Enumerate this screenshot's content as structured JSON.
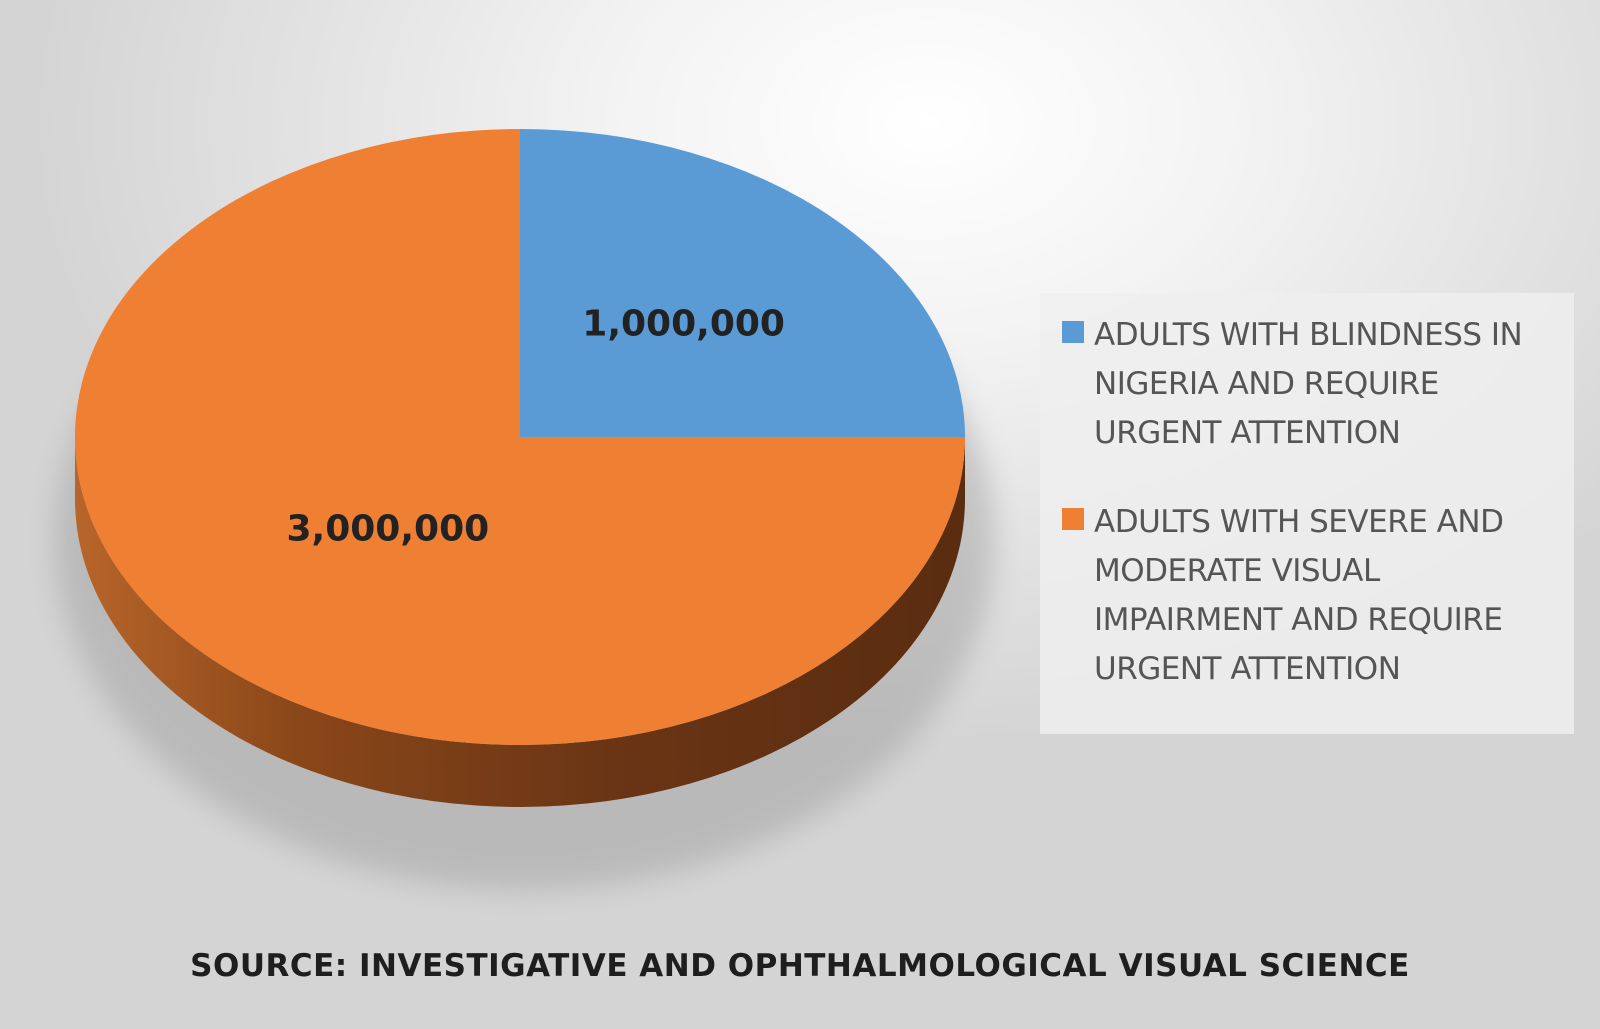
{
  "chart_data": {
    "type": "pie",
    "categories": [
      "ADULTS WITH BLINDNESS IN NIGERIA AND REQUIRE URGENT ATTENTION",
      "ADULTS WITH SEVERE AND MODERATE VISUAL IMPAIRMENT AND REQUIRE URGENT ATTENTION"
    ],
    "values": [
      1000000,
      3000000
    ],
    "data_labels": [
      "1,000,000",
      "3,000,000"
    ],
    "colors": [
      "#5b9bd5",
      "#ef7f32"
    ],
    "legend_position": "right",
    "style": "3d"
  },
  "source": "SOURCE: INVESTIGATIVE AND OPHTHALMOLOGICAL VISUAL SCIENCE"
}
